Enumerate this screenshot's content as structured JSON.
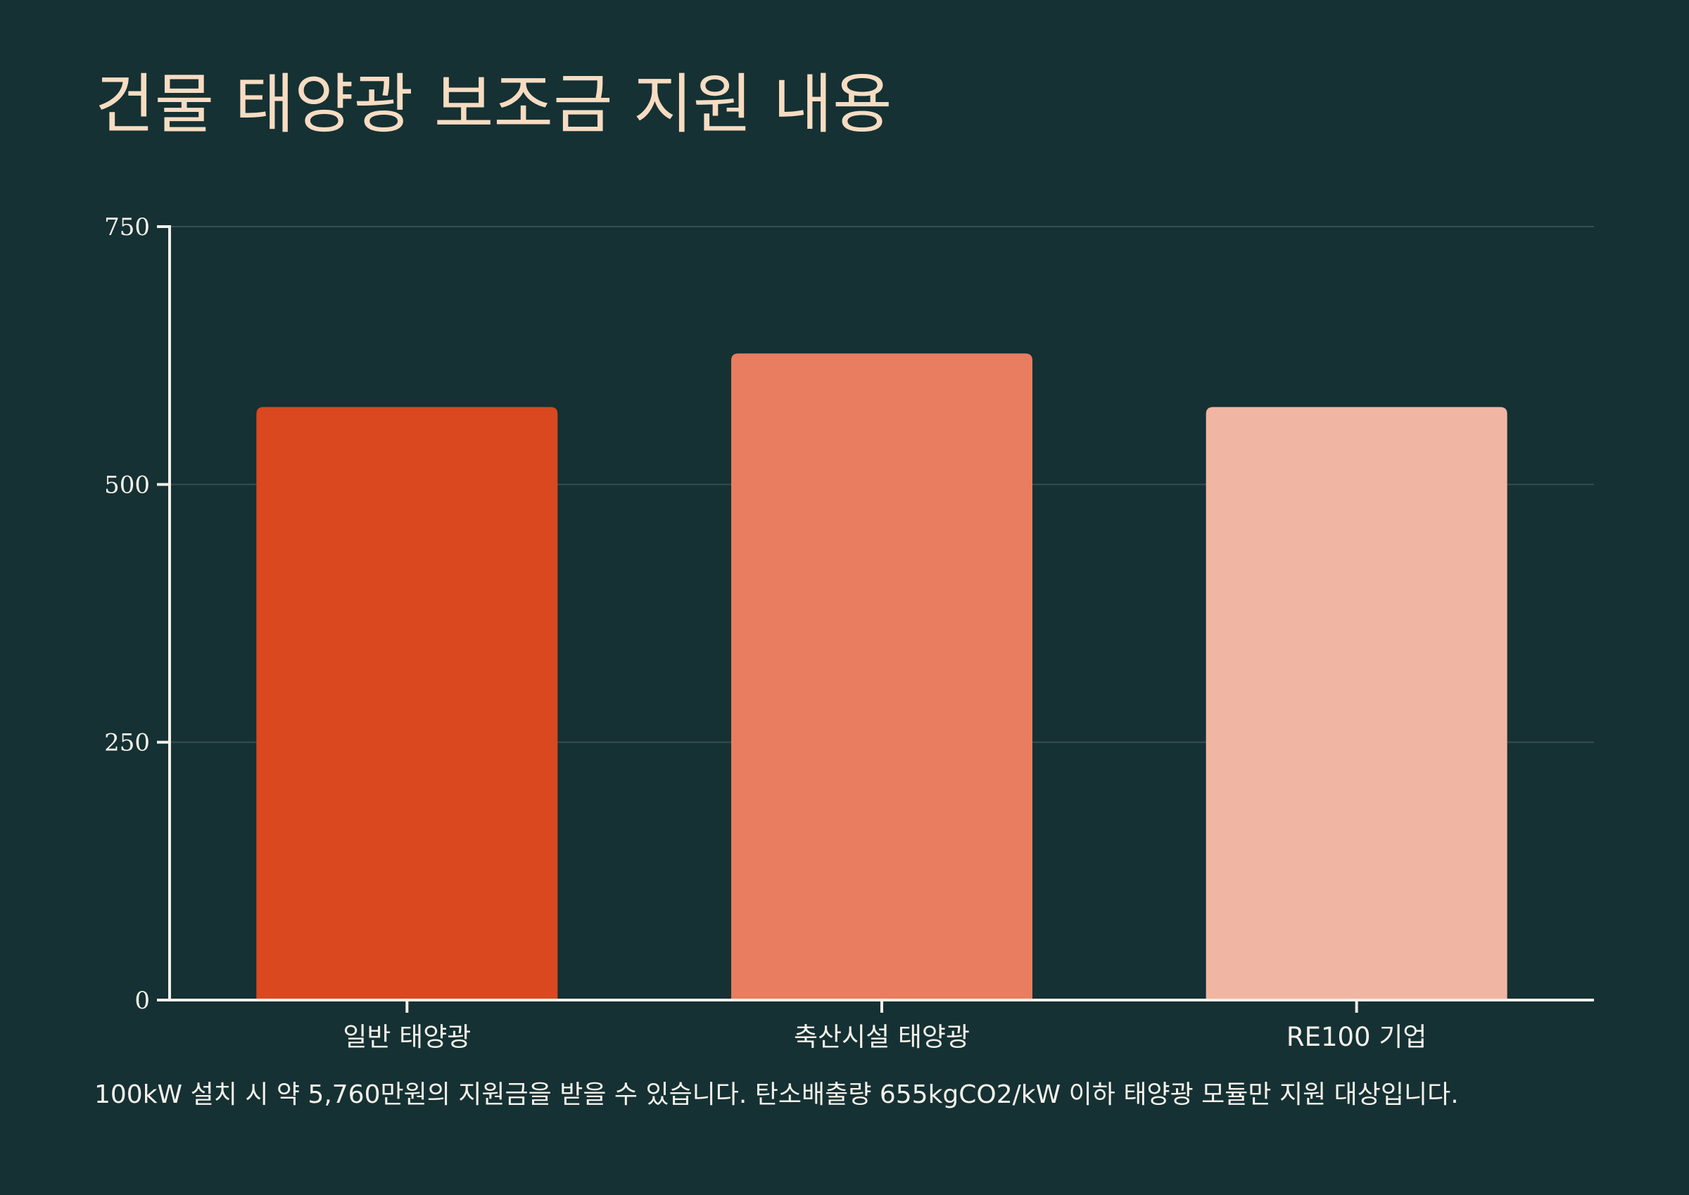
{
  "colors": {
    "background": "#153133",
    "title": "#f7dcc2",
    "text": "#f6f1ea",
    "axis": "#f6f1ea",
    "grid": "#36504f",
    "bars": [
      "#d9481e",
      "#e87d5f",
      "#f1b5a3"
    ]
  },
  "chart_data": {
    "type": "bar",
    "title": "건물 태양광 보조금 지원 내용",
    "xlabel": "",
    "ylabel": "",
    "categories": [
      "일반 태양광",
      "축산시설 태양광",
      "RE100 기업"
    ],
    "values": [
      575,
      627,
      575
    ],
    "ylim": [
      0,
      750
    ],
    "yticks": [
      0,
      250,
      500,
      750
    ],
    "ytick_labels": [
      "0",
      "250",
      "500",
      "750"
    ],
    "grid": true,
    "legend": "none"
  },
  "footnote": "100kW 설치 시 약 5,760만원의 지원금을 받을 수 있습니다. 탄소배출량 655kgCO2/kW 이하 태양광 모듈만 지원 대상입니다."
}
